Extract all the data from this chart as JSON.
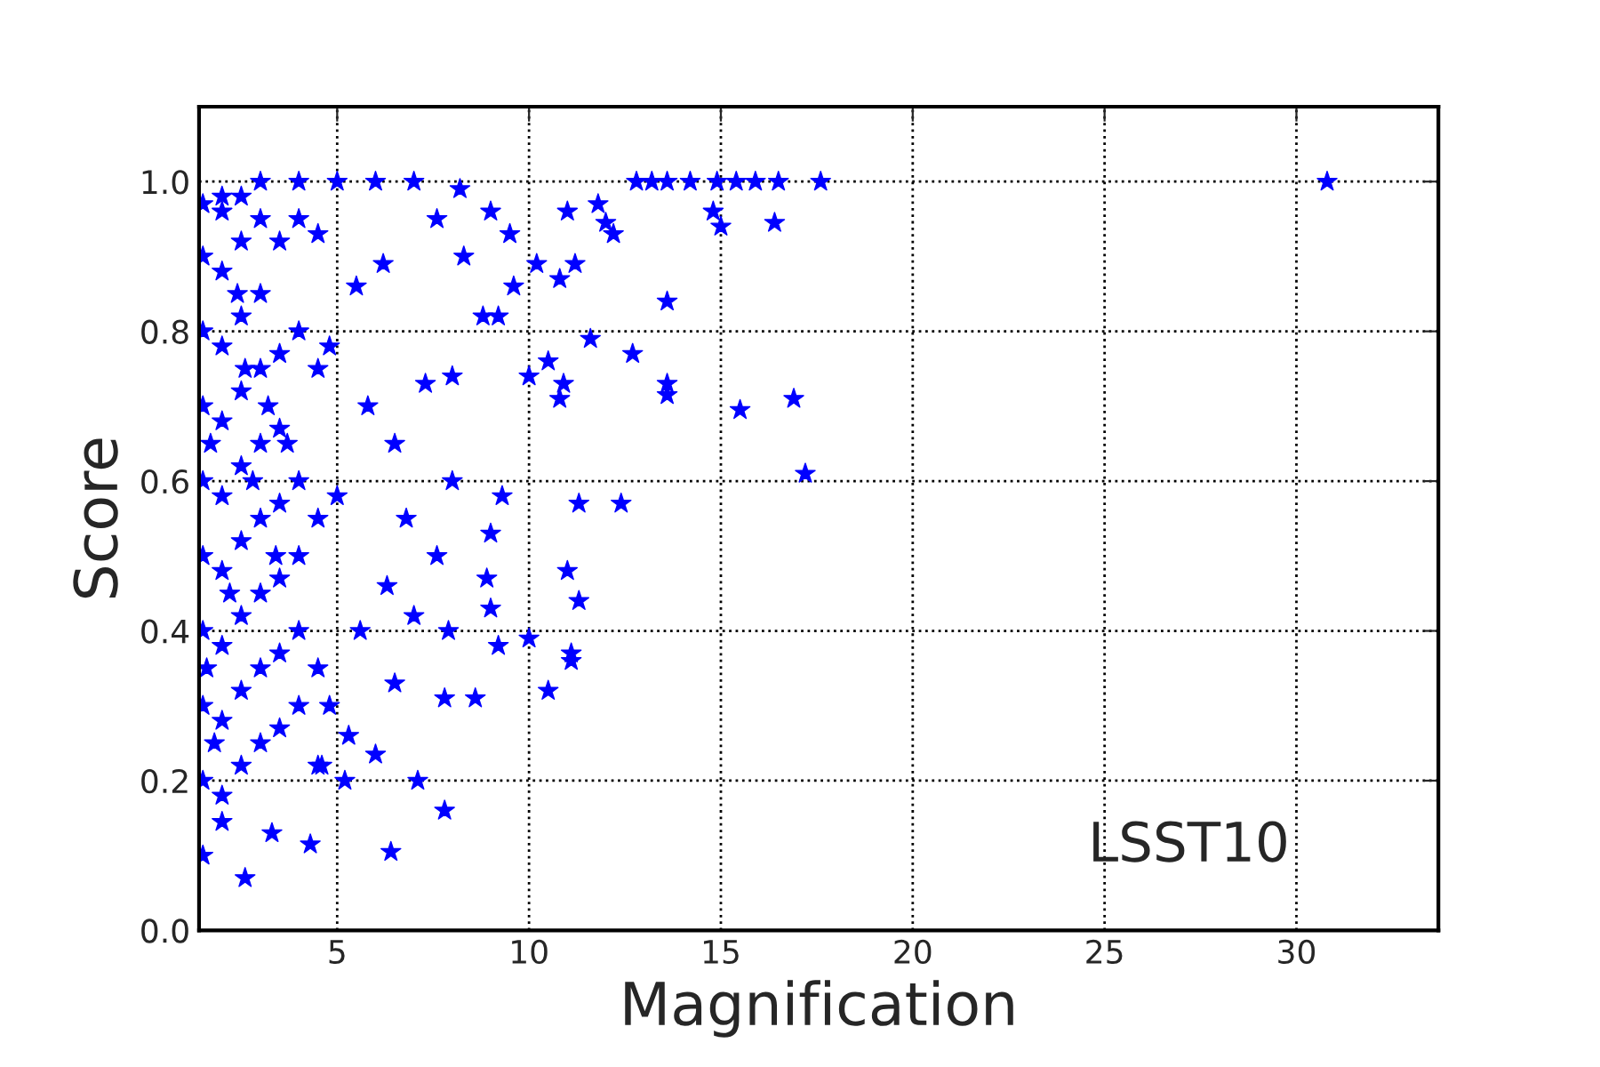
{
  "chart_data": {
    "type": "scatter",
    "xlabel": "Magnification",
    "ylabel": "Score",
    "annotations": [
      "LSST10"
    ],
    "xlim": [
      1.4,
      33.7
    ],
    "ylim": [
      0,
      1.1
    ],
    "xticks": [
      5,
      10,
      15,
      20,
      25,
      30
    ],
    "yticks": [
      {
        "value": 0,
        "label": "0.0"
      },
      0.2,
      0.4,
      0.6,
      0.8,
      {
        "value": 1,
        "label": "1.0"
      }
    ],
    "grid": true,
    "marker": "star",
    "legend": false,
    "series": [
      {
        "color": "#0000ff",
        "x": [
          30.8,
          17.6,
          16.5,
          15.9,
          15.4,
          14.9,
          14.2,
          13.6,
          13.2,
          12.8,
          14.8,
          15.0,
          16.4,
          13.6,
          12.7,
          13.6,
          13.6,
          15.5,
          16.9,
          17.2,
          12.4,
          11.3,
          11.0,
          11.3,
          11.1,
          11.1,
          10.5,
          10.0,
          11.0,
          11.6,
          12.2,
          12.0,
          11.8,
          11.2,
          10.8,
          10.2,
          9.6,
          10.0,
          10.5,
          10.8,
          10.9,
          9.3,
          9.0,
          8.9,
          9.0,
          9.2,
          8.6,
          7.8,
          7.8,
          6.4,
          4.3,
          2.6,
          1.5,
          7.1,
          6.0,
          5.3,
          4.6,
          3.3,
          2.0,
          9.0,
          8.2,
          7.0,
          6.0,
          5.0,
          4.0,
          3.0,
          2.0,
          9.5,
          8.3,
          7.6,
          8.8,
          9.2,
          8.0,
          7.3,
          8.0,
          7.6,
          6.8,
          6.5,
          7.0,
          7.9,
          6.5,
          6.3,
          5.8,
          5.5,
          6.2,
          4.8,
          5.0,
          5.6,
          4.8,
          5.2,
          1.5,
          1.5,
          1.5,
          1.5,
          1.5,
          1.5,
          1.5,
          1.5,
          1.5,
          2.0,
          2.0,
          2.0,
          2.0,
          2.0,
          2.0,
          2.0,
          2.0,
          2.0,
          2.5,
          2.5,
          2.5,
          2.5,
          2.5,
          2.5,
          2.5,
          2.5,
          2.5,
          3.0,
          3.0,
          3.0,
          3.0,
          3.0,
          3.0,
          3.0,
          3.0,
          3.5,
          3.5,
          3.5,
          3.5,
          3.5,
          3.5,
          3.5,
          4.0,
          4.0,
          4.0,
          4.0,
          4.0,
          4.0,
          4.5,
          4.5,
          4.5,
          4.5,
          4.5,
          1.8,
          2.2,
          2.8,
          3.2,
          1.7,
          2.4,
          3.7,
          1.6,
          2.6,
          3.4
        ],
        "values": [
          1.0,
          1.0,
          1.0,
          1.0,
          1.0,
          1.0,
          1.0,
          1.0,
          1.0,
          1.0,
          0.96,
          0.94,
          0.945,
          0.84,
          0.77,
          0.73,
          0.715,
          0.695,
          0.71,
          0.61,
          0.57,
          0.57,
          0.48,
          0.44,
          0.37,
          0.36,
          0.32,
          0.39,
          0.96,
          0.79,
          0.93,
          0.945,
          0.97,
          0.89,
          0.87,
          0.89,
          0.86,
          0.74,
          0.76,
          0.71,
          0.73,
          0.58,
          0.53,
          0.47,
          0.43,
          0.38,
          0.31,
          0.31,
          0.16,
          0.105,
          0.115,
          0.07,
          0.1,
          0.2,
          0.235,
          0.26,
          0.22,
          0.13,
          0.145,
          0.96,
          0.99,
          1.0,
          1.0,
          1.0,
          1.0,
          1.0,
          0.98,
          0.93,
          0.9,
          0.95,
          0.82,
          0.82,
          0.74,
          0.73,
          0.6,
          0.5,
          0.55,
          0.65,
          0.42,
          0.4,
          0.33,
          0.46,
          0.7,
          0.86,
          0.89,
          0.78,
          0.58,
          0.4,
          0.3,
          0.2,
          0.2,
          0.3,
          0.4,
          0.5,
          0.6,
          0.7,
          0.8,
          0.9,
          0.97,
          0.18,
          0.28,
          0.38,
          0.48,
          0.58,
          0.68,
          0.78,
          0.88,
          0.96,
          0.22,
          0.32,
          0.42,
          0.52,
          0.62,
          0.72,
          0.82,
          0.92,
          0.98,
          0.25,
          0.35,
          0.45,
          0.55,
          0.65,
          0.75,
          0.85,
          0.95,
          0.27,
          0.37,
          0.47,
          0.57,
          0.67,
          0.77,
          0.92,
          0.3,
          0.4,
          0.5,
          0.6,
          0.8,
          0.95,
          0.22,
          0.35,
          0.55,
          0.75,
          0.93,
          0.25,
          0.45,
          0.6,
          0.7,
          0.65,
          0.85,
          0.65,
          0.35,
          0.75,
          0.5
        ]
      }
    ]
  }
}
